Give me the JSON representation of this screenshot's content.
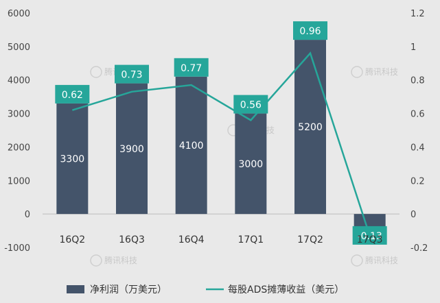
{
  "chart_data": {
    "type": "bar",
    "categories": [
      "16Q2",
      "16Q3",
      "16Q4",
      "17Q1",
      "17Q2",
      "17Q3"
    ],
    "series": [
      {
        "name": "净利润（万美元）",
        "type": "bar",
        "axis": "left",
        "values": [
          3300,
          3900,
          4100,
          3000,
          5200,
          -700
        ],
        "labels": [
          "3300",
          "3900",
          "4100",
          "3000",
          "5200",
          ""
        ]
      },
      {
        "name": "每股ADS摊薄收益（美元）",
        "type": "line",
        "axis": "right",
        "values": [
          0.62,
          0.73,
          0.77,
          0.56,
          0.96,
          -0.13
        ],
        "labels": [
          "0.62",
          "0.73",
          "0.77",
          "0.56",
          "0.96",
          "-0.13"
        ]
      }
    ],
    "y_left": {
      "min": -1000,
      "max": 6000,
      "ticks": [
        "-1000",
        "0",
        "1000",
        "2000",
        "3000",
        "4000",
        "5000",
        "6000"
      ]
    },
    "y_right": {
      "min": -0.2,
      "max": 1.2,
      "ticks": [
        "-0.2",
        "0",
        "0.2",
        "0.4",
        "0.6",
        "0.8",
        "1",
        "1.2"
      ]
    },
    "legend_position": "bottom",
    "grid": false,
    "colors": {
      "bar": "#44546a",
      "line": "#26a69a",
      "label_box": "#26a69a"
    },
    "watermark": "腾讯科技"
  }
}
